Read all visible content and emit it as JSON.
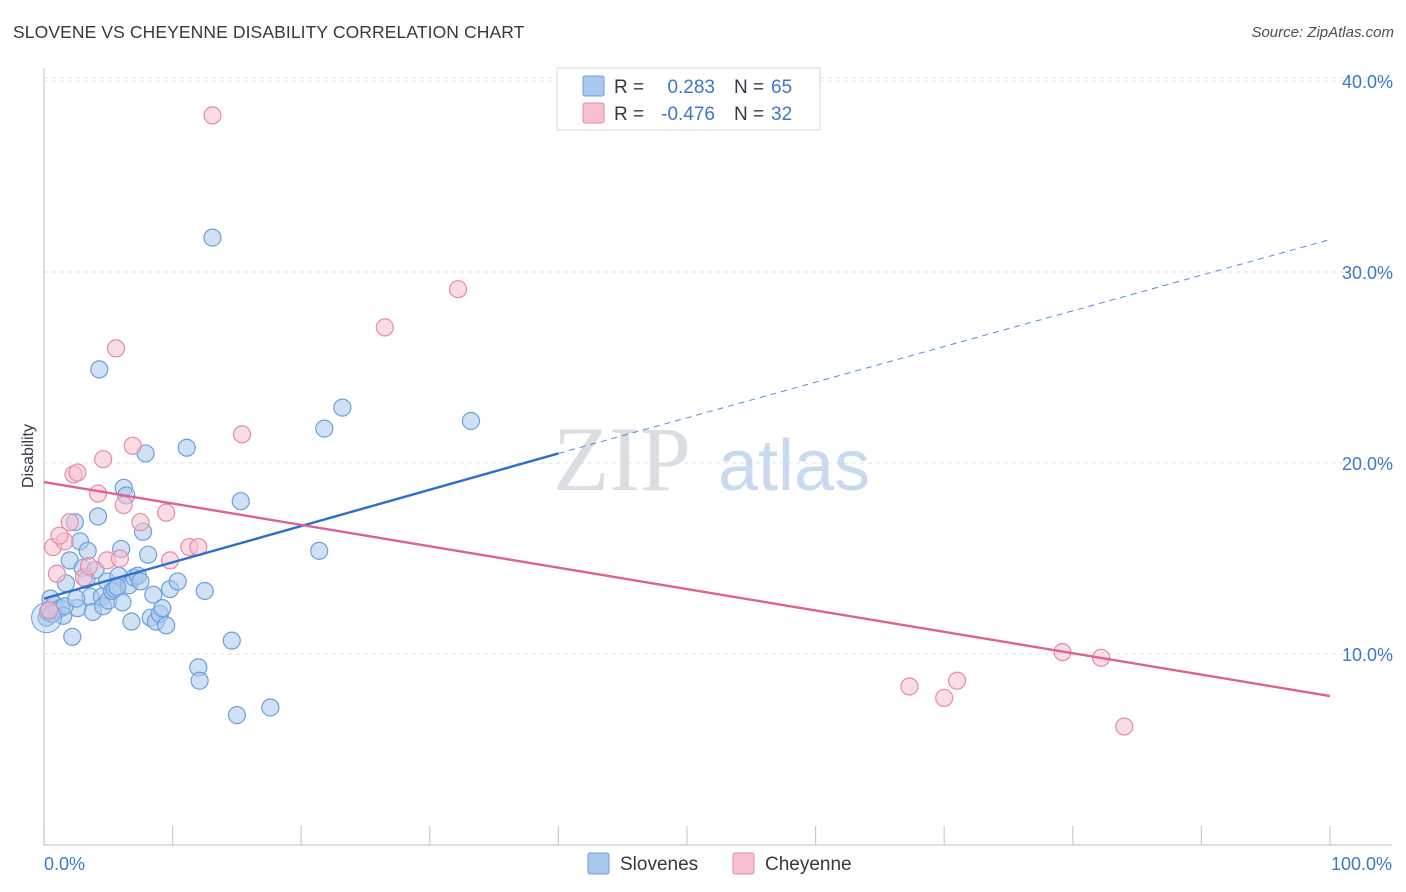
{
  "header": {
    "title": "SLOVENE VS CHEYENNE DISABILITY CORRELATION CHART",
    "source": "Source: ZipAtlas.com"
  },
  "watermark": {
    "part1": "ZIP",
    "part2": "atlas"
  },
  "colors": {
    "slovenes_fill": "#a9c8ee",
    "slovenes_stroke": "#6d9fd8",
    "slovenes_line": "#2a6fcc",
    "cheyenne_fill": "#f6bfd0",
    "cheyenne_stroke": "#e78aa8",
    "cheyenne_line": "#e06090",
    "value_text": "#3c78c8"
  },
  "legend": {
    "rows": [
      {
        "r_label": "R =",
        "r_value": "0.283",
        "n_label": "N =",
        "n_value": "65"
      },
      {
        "r_label": "R =",
        "r_value": "-0.476",
        "n_label": "N =",
        "n_value": "32"
      }
    ]
  },
  "chart_data": {
    "type": "scatter",
    "title": "SLOVENE VS CHEYENNE DISABILITY CORRELATION CHART",
    "xlabel": "",
    "ylabel": "Disability",
    "xlim": [
      0,
      100
    ],
    "ylim": [
      0,
      41.5
    ],
    "x_tick_labels": [
      "0.0%",
      "100.0%"
    ],
    "y_ticks": [
      10,
      20,
      30,
      40
    ],
    "y_tick_labels": [
      "10.0%",
      "20.0%",
      "30.0%",
      "40.0%"
    ],
    "grid": "horizontal dashed",
    "legend_position": "top-center",
    "bottom_legend": [
      "Slovenes",
      "Cheyenne"
    ],
    "series": [
      {
        "name": "Slovenes",
        "r": 0.283,
        "n": 65,
        "trend": {
          "x": [
            0,
            40
          ],
          "y": [
            12.9,
            20.5
          ],
          "extended_dashed_to": [
            100,
            31.7
          ]
        },
        "points": [
          [
            0.2,
            11.9
          ],
          [
            0.3,
            12.2
          ],
          [
            0.5,
            12.9
          ],
          [
            0.8,
            12.6
          ],
          [
            1.0,
            12.3
          ],
          [
            1.3,
            12.4
          ],
          [
            1.5,
            12.0
          ],
          [
            1.7,
            13.7
          ],
          [
            2.0,
            14.9
          ],
          [
            2.2,
            10.9
          ],
          [
            2.4,
            16.9
          ],
          [
            2.6,
            12.4
          ],
          [
            2.8,
            15.9
          ],
          [
            3.0,
            14.5
          ],
          [
            3.3,
            13.9
          ],
          [
            3.4,
            15.4
          ],
          [
            3.6,
            13.0
          ],
          [
            3.8,
            12.2
          ],
          [
            4.0,
            14.4
          ],
          [
            4.2,
            17.2
          ],
          [
            4.5,
            13.0
          ],
          [
            4.6,
            12.5
          ],
          [
            4.9,
            13.8
          ],
          [
            5.0,
            12.8
          ],
          [
            5.3,
            13.3
          ],
          [
            5.5,
            13.4
          ],
          [
            5.8,
            14.1
          ],
          [
            6.0,
            15.5
          ],
          [
            6.2,
            18.7
          ],
          [
            6.4,
            18.3
          ],
          [
            6.6,
            13.6
          ],
          [
            6.8,
            11.7
          ],
          [
            7.0,
            14.0
          ],
          [
            7.3,
            14.1
          ],
          [
            7.5,
            13.8
          ],
          [
            7.7,
            16.4
          ],
          [
            7.9,
            20.5
          ],
          [
            8.1,
            15.2
          ],
          [
            8.3,
            11.9
          ],
          [
            8.5,
            13.1
          ],
          [
            8.7,
            11.7
          ],
          [
            9.0,
            12.1
          ],
          [
            9.2,
            12.4
          ],
          [
            9.5,
            11.5
          ],
          [
            9.8,
            13.4
          ],
          [
            10.4,
            13.8
          ],
          [
            11.1,
            20.8
          ],
          [
            12.0,
            9.3
          ],
          [
            12.1,
            8.6
          ],
          [
            12.5,
            13.3
          ],
          [
            13.1,
            31.8
          ],
          [
            14.6,
            10.7
          ],
          [
            15.0,
            6.8
          ],
          [
            15.3,
            18.0
          ],
          [
            17.6,
            7.2
          ],
          [
            21.4,
            15.4
          ],
          [
            21.8,
            21.8
          ],
          [
            23.2,
            22.9
          ],
          [
            33.2,
            22.2
          ],
          [
            4.3,
            24.9
          ],
          [
            1.6,
            12.5
          ],
          [
            2.5,
            12.9
          ],
          [
            5.7,
            13.5
          ],
          [
            6.1,
            12.7
          ],
          [
            0.6,
            12.1
          ]
        ]
      },
      {
        "name": "Cheyenne",
        "r": -0.476,
        "n": 32,
        "trend": {
          "x": [
            0,
            100
          ],
          "y": [
            19.0,
            7.8
          ]
        },
        "points": [
          [
            0.4,
            12.3
          ],
          [
            0.7,
            15.6
          ],
          [
            1.0,
            14.2
          ],
          [
            1.6,
            15.9
          ],
          [
            2.0,
            16.9
          ],
          [
            2.3,
            19.4
          ],
          [
            2.6,
            19.5
          ],
          [
            3.1,
            14.0
          ],
          [
            3.5,
            14.6
          ],
          [
            4.2,
            18.4
          ],
          [
            4.6,
            20.2
          ],
          [
            4.9,
            14.9
          ],
          [
            5.6,
            26.0
          ],
          [
            5.9,
            15.0
          ],
          [
            6.2,
            17.8
          ],
          [
            6.9,
            20.9
          ],
          [
            7.5,
            16.9
          ],
          [
            9.5,
            17.4
          ],
          [
            9.8,
            14.9
          ],
          [
            11.3,
            15.6
          ],
          [
            12.0,
            15.6
          ],
          [
            13.1,
            38.2
          ],
          [
            15.4,
            21.5
          ],
          [
            26.5,
            27.1
          ],
          [
            32.2,
            29.1
          ],
          [
            67.3,
            8.3
          ],
          [
            70.0,
            7.7
          ],
          [
            71.0,
            8.6
          ],
          [
            79.2,
            10.1
          ],
          [
            82.2,
            9.8
          ],
          [
            84.0,
            6.2
          ],
          [
            1.2,
            16.2
          ]
        ]
      }
    ]
  }
}
